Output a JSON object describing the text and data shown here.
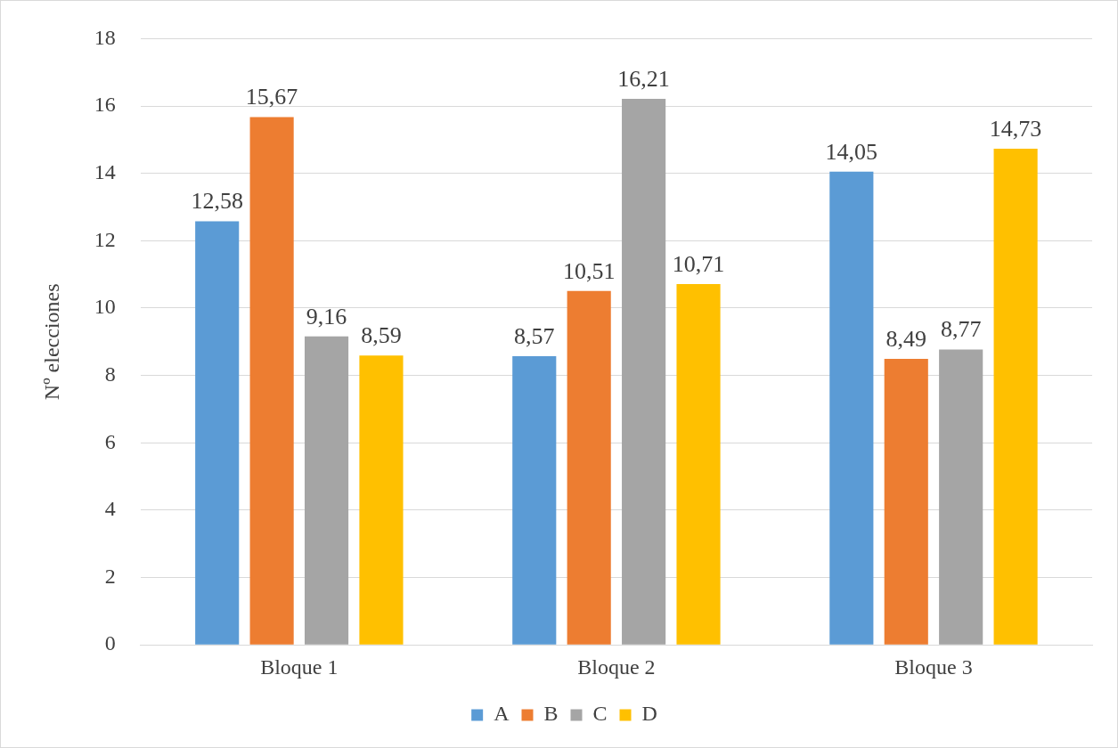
{
  "chart_data": {
    "type": "bar",
    "ylabel": "Nº elecciones",
    "categories": [
      "Bloque 1",
      "Bloque 2",
      "Bloque 3"
    ],
    "series": [
      {
        "name": "A",
        "color": "#5b9bd5",
        "values": [
          12.58,
          8.57,
          14.05
        ],
        "value_labels": [
          "12,58",
          "8,57",
          "14,05"
        ]
      },
      {
        "name": "B",
        "color": "#ed7d31",
        "values": [
          15.67,
          10.51,
          8.49
        ],
        "value_labels": [
          "15,67",
          "10,51",
          "8,49"
        ]
      },
      {
        "name": "C",
        "color": "#a5a5a5",
        "values": [
          9.16,
          16.21,
          8.77
        ],
        "value_labels": [
          "9,16",
          "16,21",
          "8,77"
        ]
      },
      {
        "name": "D",
        "color": "#ffc000",
        "values": [
          8.59,
          10.71,
          14.73
        ],
        "value_labels": [
          "8,59",
          "10,71",
          "14,73"
        ]
      }
    ],
    "ylim": [
      0,
      18
    ],
    "yticks": [
      0,
      2,
      4,
      6,
      8,
      10,
      12,
      14,
      16,
      18
    ],
    "grid": "y",
    "legend": "bottom"
  }
}
